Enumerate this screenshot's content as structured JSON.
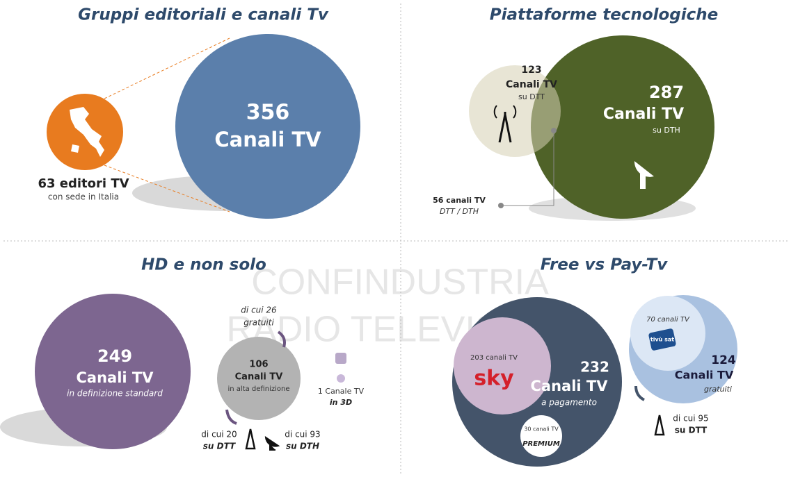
{
  "watermark": {
    "line1": "CONFINDUSTRIA",
    "line2": "RADIO TELEVISIONI"
  },
  "panels": [
    {
      "title": "Gruppi editoriali e canali Tv",
      "editors": "63 editori TV",
      "editors_sub": "con sede in Italia",
      "channels_number": "356",
      "channels_label": "Canali TV"
    },
    {
      "title": "Piattaforme tecnologiche",
      "dtt_number": "123",
      "dtt_label": "Canali TV",
      "dtt_sub": "su DTT",
      "dth_number": "287",
      "dth_label": "Canali TV",
      "dth_sub": "su DTH",
      "overlap": "56 canali TV",
      "overlap_sub": "DTT / DTH"
    },
    {
      "title": "HD e non solo",
      "sd_number": "249",
      "sd_label": "Canali TV",
      "sd_sub": "in definizione standard",
      "hd_number": "106",
      "hd_label": "Canali TV",
      "hd_sub": "in alta definizione",
      "hd_free": "di cui 26",
      "hd_free_sub": "gratuiti",
      "hd_dtt": "di cui 20",
      "hd_dtt_sub": "su DTT",
      "hd_dth": "di cui 93",
      "hd_dth_sub": "su DTH",
      "three_d": "1 Canale TV",
      "three_d_sub": "in 3D"
    },
    {
      "title": "Free vs Pay-Tv",
      "pay_number": "232",
      "pay_label": "Canali TV",
      "pay_sub": "a pagamento",
      "sky": "203 canali TV",
      "sky_logo": "sky",
      "premium": "30 canali TV",
      "premium_logo": "PREMIUM",
      "free_number": "124",
      "free_label": "Canali TV",
      "free_sub": "gratuiti",
      "tivu": "70 canali TV",
      "tivu_logo": "tivù sat",
      "free_dtt": "di cui 95",
      "free_dtt_sub": "su DTT"
    }
  ]
}
